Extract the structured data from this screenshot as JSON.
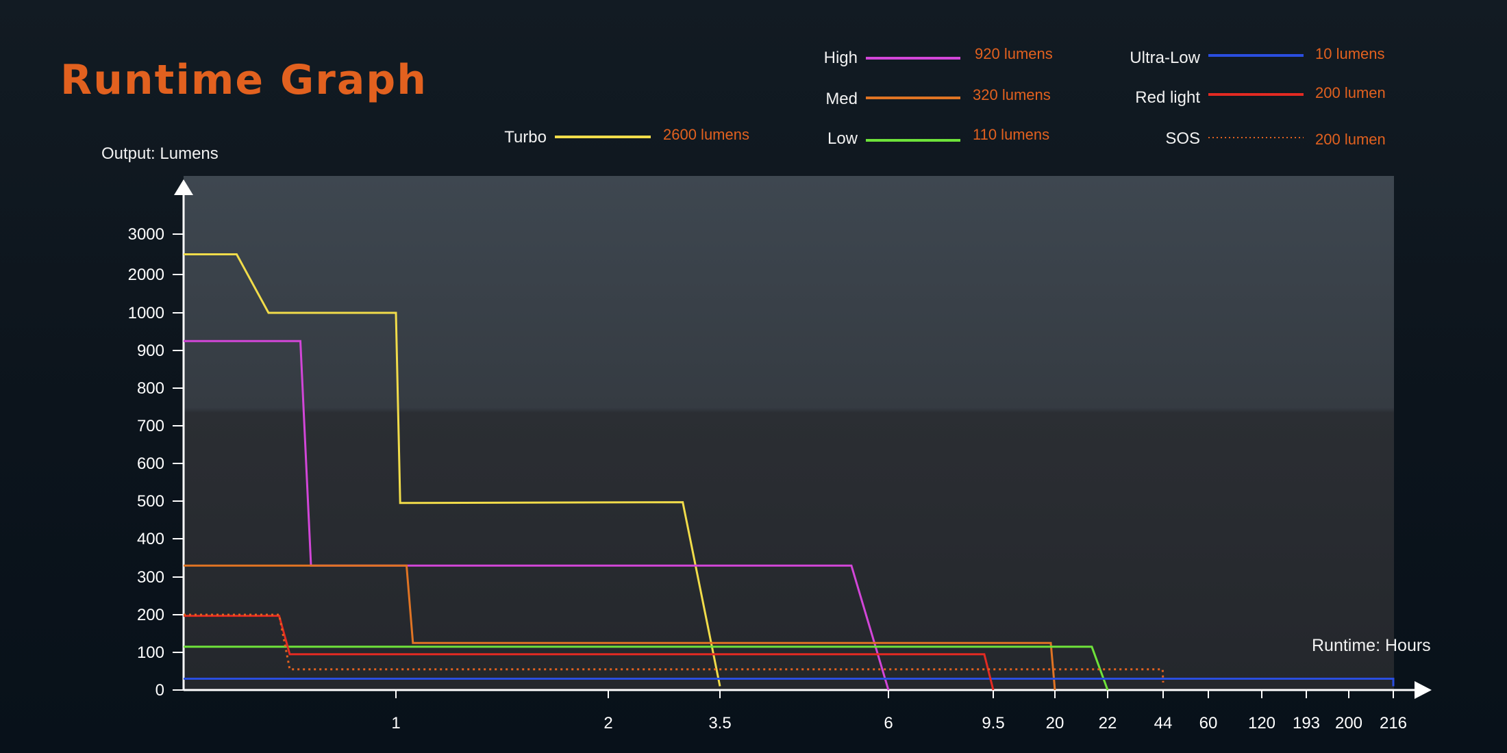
{
  "header": {
    "title": "Runtime Graph"
  },
  "chart_data": {
    "type": "line",
    "title": "Runtime Graph",
    "ylabel": "Output: Lumens",
    "xlabel": "Runtime: Hours",
    "y_ticks": [
      "0",
      "100",
      "200",
      "300",
      "400",
      "500",
      "600",
      "700",
      "800",
      "900",
      "1000",
      "2000",
      "3000"
    ],
    "x_ticks": [
      "1",
      "2",
      "3.5",
      "6",
      "9.5",
      "20",
      "22",
      "44",
      "60",
      "120",
      "193",
      "200",
      "216"
    ],
    "ylim": [
      0,
      3000
    ],
    "scale_note": "non-linear axes: y linear 0–900 in steps of 100, then 1000, 2000, 3000; x is categorical hour ticks",
    "grid": false,
    "legend_placement": "top",
    "legend": [
      {
        "name": "Turbo",
        "value_label": "2600 lumens",
        "color": "#f1dc4a",
        "dash": "solid"
      },
      {
        "name": "High",
        "value_label": "920 lumens",
        "color": "#d246d8",
        "dash": "solid"
      },
      {
        "name": "Med",
        "value_label": "320 lumens",
        "color": "#e07424",
        "dash": "solid"
      },
      {
        "name": "Low",
        "value_label": "110 lumens",
        "color": "#6ee23a",
        "dash": "solid"
      },
      {
        "name": "Ultra-Low",
        "value_label": "10 lumens",
        "color": "#2a4ee0",
        "dash": "solid"
      },
      {
        "name": "Red light",
        "value_label": "200 lumen",
        "color": "#e32a22",
        "dash": "solid"
      },
      {
        "name": "SOS",
        "value_label": "200 lumen",
        "color": "#e2611f",
        "dash": "dotted"
      }
    ],
    "series": [
      {
        "name": "Turbo",
        "color": "#f1dc4a",
        "dash": "solid",
        "points": [
          [
            0,
            2500
          ],
          [
            0.25,
            2500
          ],
          [
            0.4,
            1000
          ],
          [
            1.0,
            1000
          ],
          [
            1.02,
            495
          ],
          [
            3.0,
            497
          ],
          [
            3.5,
            10
          ]
        ]
      },
      {
        "name": "High",
        "color": "#d246d8",
        "dash": "solid",
        "points": [
          [
            0,
            925
          ],
          [
            0.55,
            925
          ],
          [
            0.6,
            330
          ],
          [
            5.45,
            330
          ],
          [
            6,
            0
          ]
        ]
      },
      {
        "name": "Med",
        "color": "#e07424",
        "dash": "solid",
        "points": [
          [
            0,
            330
          ],
          [
            1.05,
            330
          ],
          [
            1.08,
            125
          ],
          [
            19.3,
            125
          ],
          [
            20,
            0
          ]
        ]
      },
      {
        "name": "Low",
        "color": "#6ee23a",
        "dash": "solid",
        "points": [
          [
            0,
            115
          ],
          [
            21.4,
            115
          ],
          [
            22,
            0
          ]
        ]
      },
      {
        "name": "Ultra-Low",
        "color": "#2a4ee0",
        "dash": "solid",
        "points": [
          [
            0,
            30
          ],
          [
            216,
            30
          ],
          [
            216,
            10
          ]
        ]
      },
      {
        "name": "Red light",
        "color": "#e32a22",
        "dash": "solid",
        "points": [
          [
            0,
            197
          ],
          [
            0.45,
            197
          ],
          [
            0.5,
            95
          ],
          [
            9.2,
            95
          ],
          [
            9.5,
            0
          ]
        ]
      },
      {
        "name": "SOS",
        "color": "#e2611f",
        "dash": "dotted",
        "points": [
          [
            0,
            200
          ],
          [
            0.45,
            200
          ],
          [
            0.5,
            55
          ],
          [
            43.8,
            55
          ],
          [
            44,
            20
          ]
        ]
      }
    ]
  }
}
